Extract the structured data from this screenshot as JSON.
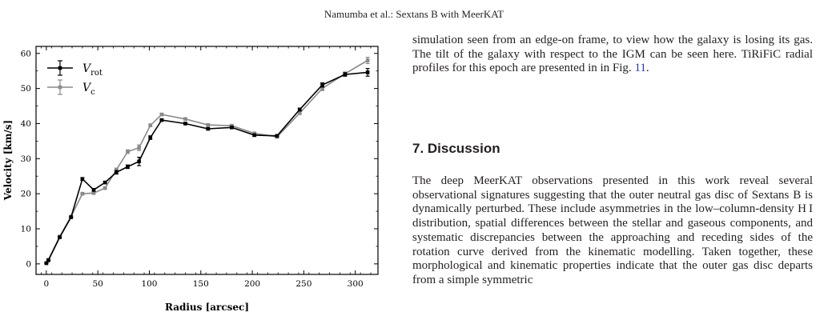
{
  "header": {
    "running_head": "Namumba et al.: Sextans B with MeerKAT"
  },
  "paragraph1": {
    "text": "simulation seen from an edge-on frame, to view how the galaxy is losing its gas. The tilt of the galaxy with respect to the IGM can be seen here. TiRiFiC radial profiles for this epoch are presented in in Fig. ",
    "fig_ref": "11",
    "end": "."
  },
  "section": {
    "heading": "7. Discussion"
  },
  "paragraph2": {
    "text": "The deep MeerKAT observations presented in this work reveal several observational signatures suggesting that the outer neutral gas disc of Sextans B is dynamically perturbed. These include asymmetries in the low–column-density H I distribution, spatial differences between the stellar and gaseous components, and systematic discrepancies between the approaching and receding sides of the rotation curve derived from the kinematic modelling. Taken together, these morphological and kinematic properties indicate that the outer gas disc departs from a simple symmetric"
  },
  "chart_data": {
    "type": "line",
    "xlabel": "Radius [arcsec]",
    "ylabel": "Velocity [km/s]",
    "xlim": [
      -10,
      322
    ],
    "ylim": [
      -3,
      62
    ],
    "xticks": [
      0,
      50,
      100,
      150,
      200,
      250,
      300
    ],
    "yticks": [
      0,
      10,
      20,
      30,
      40,
      50,
      60
    ],
    "legend_position": "top-left",
    "x": [
      0,
      2,
      13,
      24,
      35,
      46,
      57,
      68,
      79,
      90,
      101,
      112,
      135,
      157,
      180,
      202,
      224,
      246,
      268,
      290,
      312
    ],
    "series": [
      {
        "name": "V_rot",
        "legend_main": "V",
        "legend_sub": "rot",
        "color": "#000000",
        "values": [
          0.2,
          1.0,
          7.6,
          13.3,
          24.2,
          21.1,
          23.2,
          26.1,
          27.7,
          29.2,
          36.0,
          41.0,
          40.0,
          38.5,
          38.9,
          36.7,
          36.5,
          44.0,
          51.0,
          54.0,
          54.6
        ],
        "errors": [
          0.1,
          0.1,
          0.2,
          0.2,
          0.4,
          0.4,
          0.3,
          0.5,
          0.5,
          1.2,
          0.5,
          0.3,
          0.3,
          0.3,
          0.3,
          0.3,
          0.3,
          0.4,
          0.6,
          0.5,
          1.1
        ]
      },
      {
        "name": "V_c",
        "legend_main": "V",
        "legend_sub": "c",
        "color": "#8a8a8a",
        "values": [
          0.2,
          1.2,
          7.8,
          13.5,
          20.0,
          20.2,
          21.6,
          26.8,
          32.0,
          33.1,
          39.5,
          42.6,
          41.3,
          39.6,
          39.4,
          37.2,
          36.2,
          43.0,
          50.0,
          54.2,
          58.0
        ],
        "errors": [
          0.1,
          0.1,
          0.2,
          0.2,
          0.3,
          0.3,
          0.3,
          0.5,
          0.5,
          0.8,
          0.4,
          0.3,
          0.3,
          0.3,
          0.3,
          0.3,
          0.3,
          0.4,
          0.6,
          0.5,
          0.9
        ]
      }
    ]
  }
}
